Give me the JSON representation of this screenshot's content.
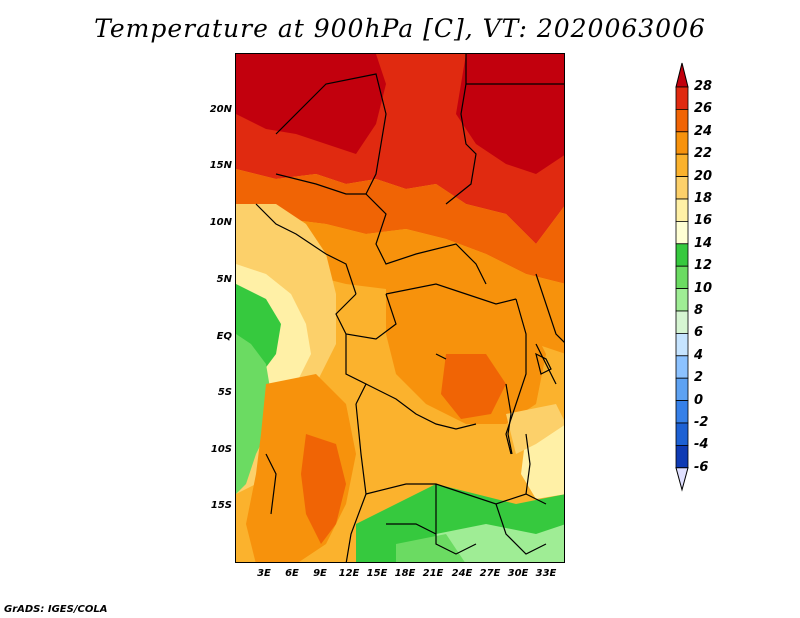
{
  "title": "Temperature at 900hPa [C], VT: 2020063006",
  "credit": "GrADS: IGES/COLA",
  "lat_labels": [
    "20N",
    "15N",
    "10N",
    "5N",
    "EQ",
    "5S",
    "10S",
    "15S"
  ],
  "lon_labels": [
    "3E",
    "6E",
    "9E",
    "12E",
    "15E",
    "18E",
    "21E",
    "24E",
    "27E",
    "30E",
    "33E"
  ],
  "colorbar": {
    "labels": [
      "28",
      "26",
      "24",
      "22",
      "20",
      "18",
      "16",
      "14",
      "12",
      "10",
      "8",
      "6",
      "4",
      "2",
      "0",
      "-2",
      "-4",
      "-6"
    ],
    "colors": [
      "#c2000d",
      "#e02a10",
      "#f06405",
      "#f7920c",
      "#fbb22d",
      "#fcd06a",
      "#fff0a6",
      "#ffffd4",
      "#36c93e",
      "#6bdb62",
      "#9fed95",
      "#d6f5d2",
      "#c6e4ff",
      "#8cc2ff",
      "#5ea2f2",
      "#3680e8",
      "#1d61d4",
      "#0f3bb4",
      "#08138a"
    ],
    "under_color": "#e0e0ff"
  },
  "map_colors": {
    "deep_red": "#c2000d",
    "red": "#e02a10",
    "orange_red": "#f06405",
    "orange": "#f7920c",
    "light_orange": "#fbb22d",
    "yellow": "#fcd06a",
    "pale_yellow": "#fff0a6",
    "cream": "#ffffd4",
    "green": "#36c93e",
    "light_green": "#6bdb62",
    "pale_green": "#9fed95"
  }
}
